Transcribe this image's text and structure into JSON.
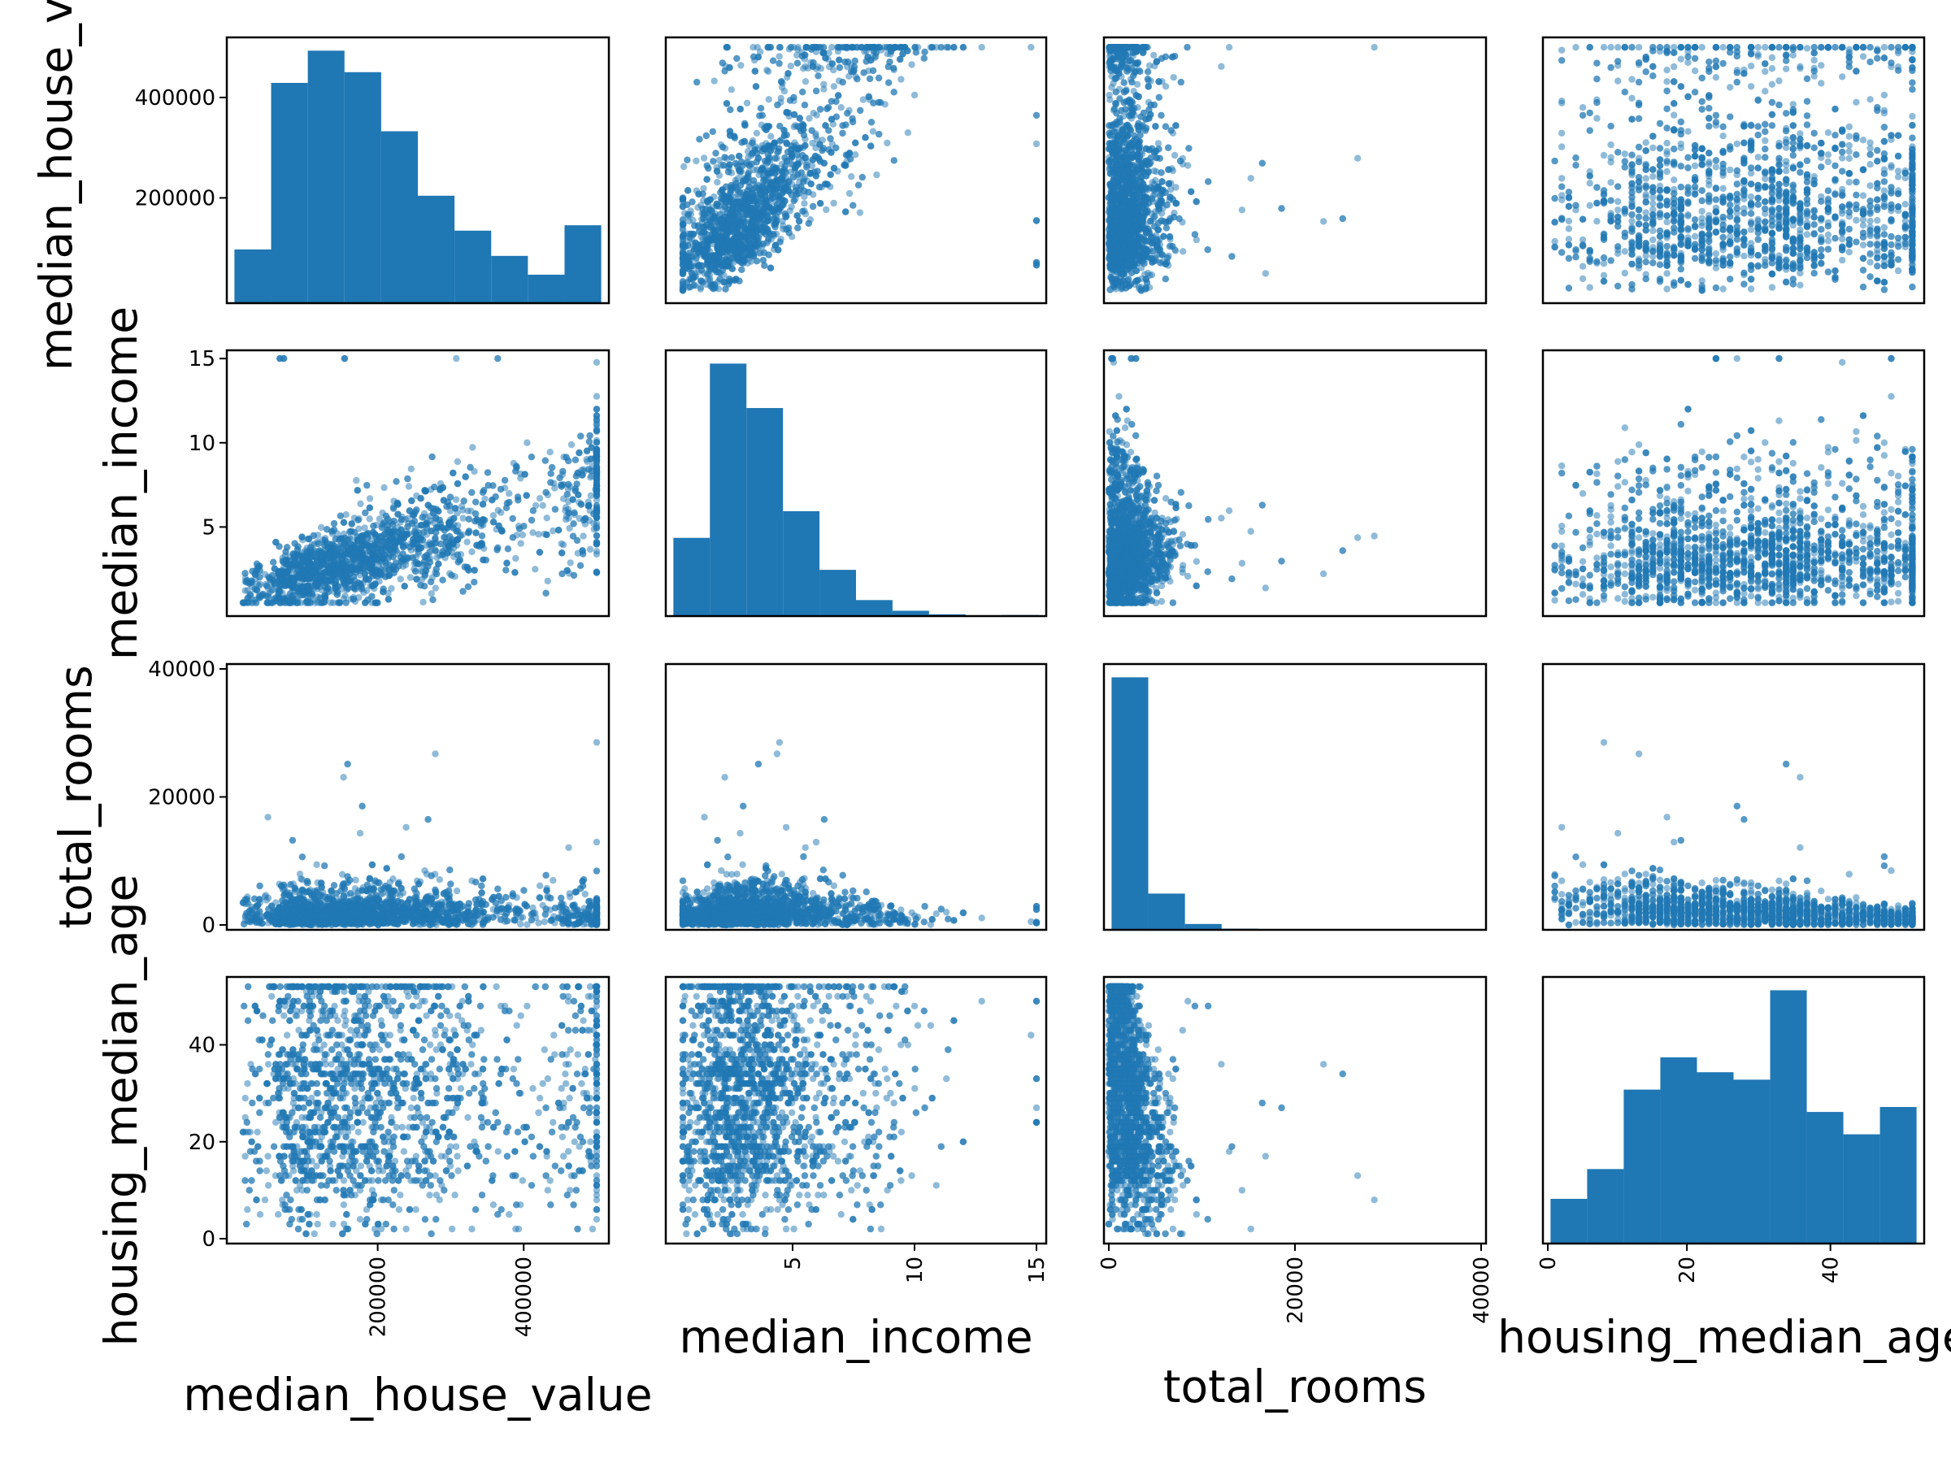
{
  "chart_data": {
    "type": "scatter_matrix",
    "description_style": "pandas scatter_matrix with histograms on the diagonal",
    "colors": {
      "marks": "#1f77b4",
      "frame": "#000000",
      "background": "#ffffff"
    },
    "point_alpha": 0.5,
    "variables": [
      {
        "name": "median_house_value",
        "label": "median_house_value",
        "row_label": "median_house_va",
        "range": [
          0,
          510000
        ],
        "ticks": [
          200000,
          400000
        ],
        "tick_labels": [
          "200000",
          "400000"
        ]
      },
      {
        "name": "median_income",
        "label": "median_income",
        "row_label": "median_income",
        "range": [
          0,
          15.2
        ],
        "ticks": [
          5,
          10,
          15
        ],
        "tick_labels": [
          "5",
          "10",
          "15"
        ]
      },
      {
        "name": "total_rooms",
        "label": "total_rooms",
        "row_label": "total_rooms",
        "range": [
          0,
          40000
        ],
        "ticks": [
          0,
          20000,
          40000
        ],
        "tick_labels": [
          "0",
          "20000",
          "40000"
        ]
      },
      {
        "name": "housing_median_age",
        "label": "housing_median_age",
        "row_label": "housing_median_age",
        "range": [
          0,
          53
        ],
        "ticks": [
          0,
          20,
          40
        ],
        "tick_labels": [
          "0",
          "20",
          "40"
        ]
      }
    ],
    "histograms": [
      {
        "variable": "median_house_value",
        "bin_edges": [
          14999,
          63499,
          111999,
          160499,
          208999,
          257499,
          305999,
          354499,
          402999,
          451499,
          500001
        ],
        "heights": [
          1,
          4.1,
          4.7,
          4.3,
          3.2,
          2,
          1.35,
          0.88,
          0.53,
          1.45
        ]
      },
      {
        "variable": "median_income",
        "bin_edges": [
          0.5,
          1.95,
          3.4,
          4.85,
          6.3,
          7.75,
          9.2,
          10.65,
          12.1,
          13.55,
          15.0
        ],
        "heights": [
          2.2,
          7.1,
          5.85,
          2.95,
          1.3,
          0.45,
          0.15,
          0.05,
          0.02,
          0.03
        ]
      },
      {
        "variable": "total_rooms",
        "bin_edges": [
          2,
          3934,
          7866,
          11798,
          15730,
          19662,
          23594,
          27526,
          31458,
          35390,
          39320
        ],
        "heights": [
          10.8,
          1.55,
          0.25,
          0.05,
          0.02,
          0.01,
          0.005,
          0.005,
          0.005,
          0.005
        ]
      },
      {
        "variable": "housing_median_age",
        "bin_edges": [
          1,
          6.1,
          11.2,
          16.3,
          21.4,
          26.5,
          31.6,
          36.7,
          41.8,
          46.9,
          52
        ],
        "heights": [
          0.9,
          1.5,
          3.1,
          3.75,
          3.45,
          3.3,
          5.1,
          2.65,
          2.2,
          2.75
        ]
      }
    ],
    "pairwise_shapes": {
      "median_income__vs__median_house_value": "positive correlation; income band widens with value; dense column at value cap 500001",
      "total_rooms__vs__median_house_value": "mostly below 10000 rooms; sparse outliers up to ~39000",
      "housing_median_age__vs__median_house_value": "roughly uniform cloud across all ages and values",
      "total_rooms__vs__median_income": "mostly below 12000 rooms; peaks near income 4-5",
      "housing_median_age__vs__median_income": "incomes mostly 1-8 across all ages; cap at 15",
      "housing_median_age__vs__total_rooms": "rooms decrease with age; young blocks have most rooms"
    }
  }
}
